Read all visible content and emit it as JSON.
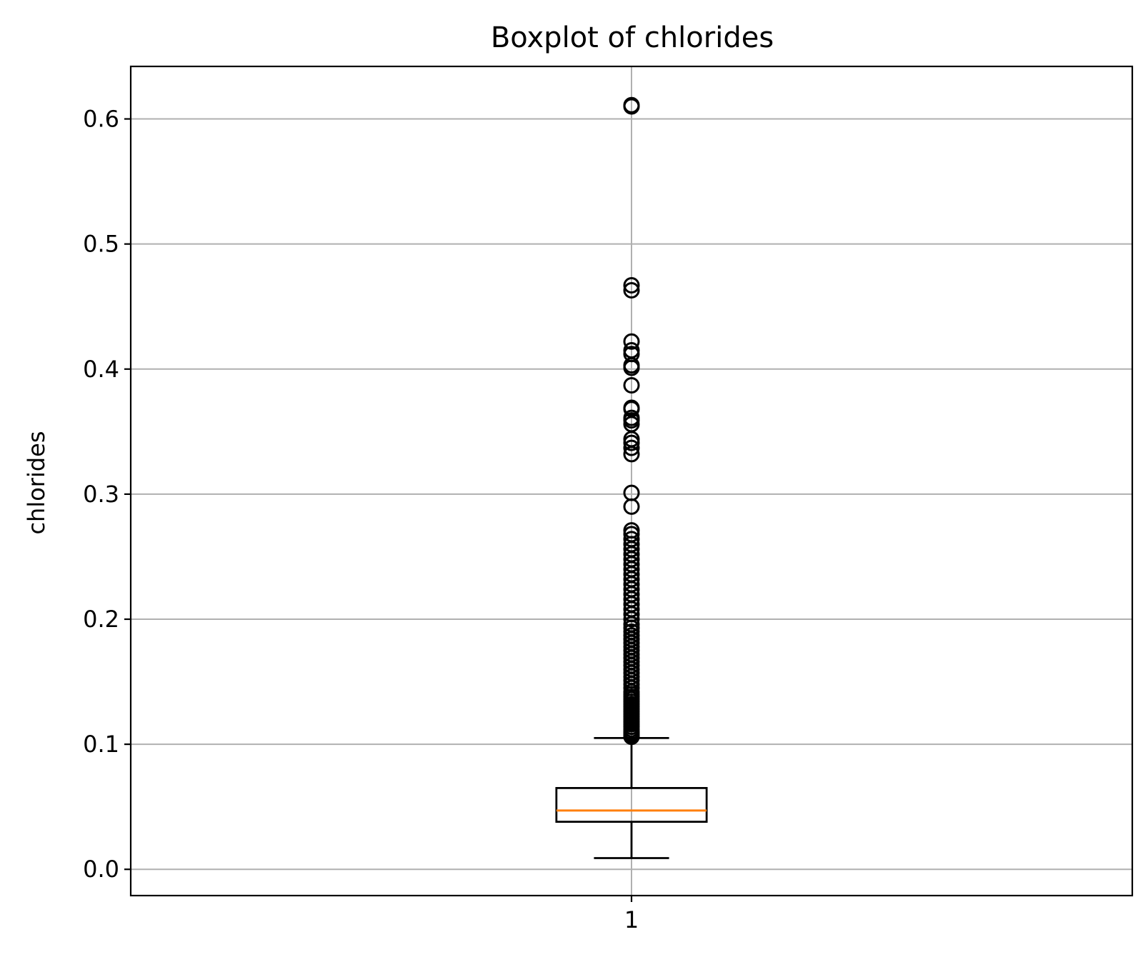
{
  "chart_data": {
    "type": "boxplot",
    "title": "Boxplot of chlorides",
    "xlabel": "",
    "ylabel": "chlorides",
    "categories": [
      "1"
    ],
    "ylim": [
      -0.021,
      0.642
    ],
    "yticks": [
      0.0,
      0.1,
      0.2,
      0.3,
      0.4,
      0.5,
      0.6
    ],
    "ytick_labels": [
      "0.0",
      "0.1",
      "0.2",
      "0.3",
      "0.4",
      "0.5",
      "0.6"
    ],
    "grid": true,
    "legend": "none",
    "boxes": [
      {
        "category": "1",
        "whisker_low": 0.009,
        "q1": 0.038,
        "median": 0.047,
        "q3": 0.065,
        "whisker_high": 0.105,
        "outliers": [
          0.106,
          0.107,
          0.108,
          0.109,
          0.11,
          0.112,
          0.114,
          0.116,
          0.118,
          0.12,
          0.122,
          0.124,
          0.126,
          0.128,
          0.13,
          0.132,
          0.134,
          0.136,
          0.138,
          0.14,
          0.142,
          0.145,
          0.148,
          0.151,
          0.154,
          0.157,
          0.16,
          0.163,
          0.166,
          0.169,
          0.172,
          0.175,
          0.178,
          0.181,
          0.184,
          0.187,
          0.19,
          0.193,
          0.196,
          0.2,
          0.204,
          0.208,
          0.212,
          0.216,
          0.22,
          0.224,
          0.228,
          0.232,
          0.236,
          0.24,
          0.244,
          0.248,
          0.252,
          0.256,
          0.26,
          0.264,
          0.268,
          0.271,
          0.29,
          0.301,
          0.332,
          0.337,
          0.341,
          0.344,
          0.356,
          0.359,
          0.361,
          0.368,
          0.369,
          0.387,
          0.401,
          0.403,
          0.412,
          0.415,
          0.422,
          0.463,
          0.467,
          0.61,
          0.611
        ]
      }
    ],
    "colors": {
      "median": "#ff7f0e",
      "box": "#000000",
      "grid": "#b0b0b0",
      "flier": "#000000"
    }
  }
}
